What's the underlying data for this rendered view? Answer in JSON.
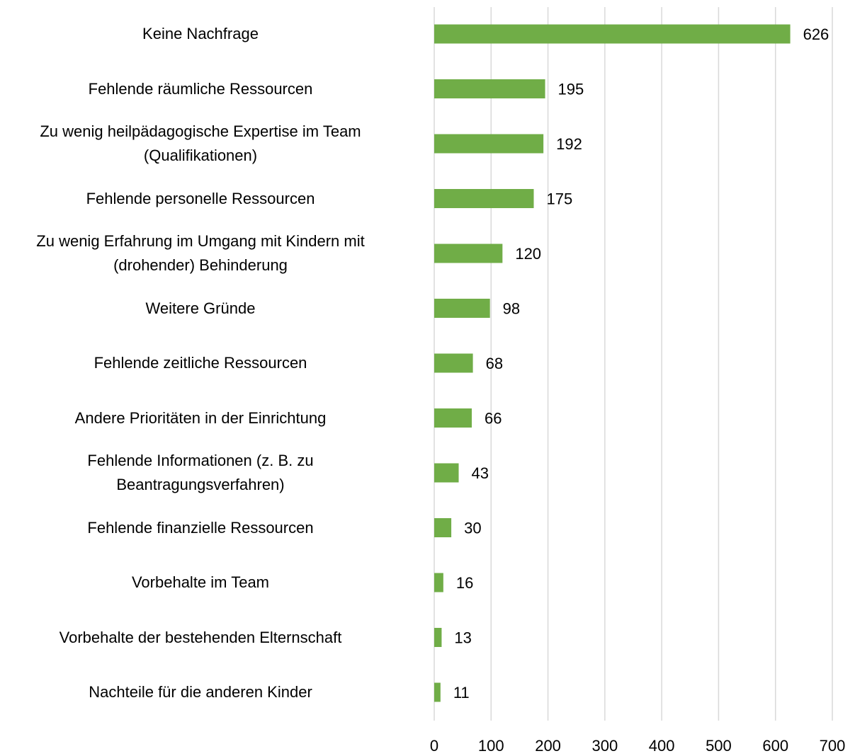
{
  "chart_data": {
    "type": "barh",
    "categories": [
      "Keine Nachfrage",
      "Fehlende räumliche Ressourcen",
      "Zu wenig heilpädagogische Expertise im Team\n(Qualifikationen)",
      "Fehlende personelle Ressourcen",
      "Zu wenig Erfahrung im Umgang mit Kindern mit\n(drohender) Behinderung",
      "Weitere Gründe",
      "Fehlende zeitliche Ressourcen",
      "Andere Prioritäten in der Einrichtung",
      "Fehlende Informationen (z. B. zu\nBeantragungsverfahren)",
      "Fehlende finanzielle Ressourcen",
      "Vorbehalte im Team",
      "Vorbehalte der bestehenden Elternschaft",
      "Nachteile für die anderen Kinder"
    ],
    "values": [
      626,
      195,
      192,
      175,
      120,
      98,
      68,
      66,
      43,
      30,
      16,
      13,
      11
    ],
    "color": "#70ad47",
    "xlim": [
      0,
      700
    ],
    "xticks": [
      0,
      100,
      200,
      300,
      400,
      500,
      600,
      700
    ],
    "grid": true
  }
}
